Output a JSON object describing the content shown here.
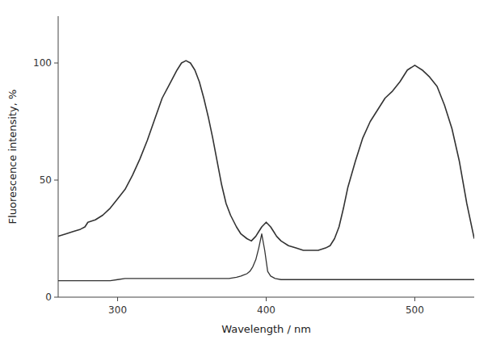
{
  "chart_data": {
    "type": "line",
    "title": "",
    "xlabel": "Wavelength / nm",
    "ylabel": "Fluorescence intensity, %",
    "xlim": [
      260,
      540
    ],
    "ylim": [
      0,
      120
    ],
    "xticks": [
      300,
      400,
      500
    ],
    "yticks": [
      0,
      50,
      100
    ],
    "grid": false,
    "series": [
      {
        "color": "#333333",
        "x": [
          260,
          265,
          270,
          275,
          278,
          280,
          285,
          290,
          295,
          300,
          305,
          310,
          315,
          320,
          325,
          330,
          335,
          340,
          343,
          346,
          349,
          352,
          355,
          358,
          361,
          364,
          367,
          370,
          373,
          376,
          380,
          383,
          387,
          390,
          393,
          395,
          397,
          400,
          403,
          405,
          407,
          410,
          415,
          420,
          425,
          430,
          435,
          440,
          443,
          446,
          449,
          452,
          455,
          460,
          465,
          470,
          475,
          480,
          485,
          490,
          495,
          500,
          505,
          510,
          515,
          520,
          525,
          530,
          535,
          540
        ],
        "values": [
          26,
          27,
          28,
          29,
          30,
          32,
          33,
          35,
          38,
          42,
          46,
          52,
          59,
          67,
          76,
          85,
          91,
          97,
          100,
          101,
          100,
          97,
          92,
          85,
          77,
          68,
          58,
          48,
          40,
          35,
          30,
          27,
          25,
          24,
          26,
          28,
          30,
          32,
          30,
          28,
          26,
          24,
          22,
          21,
          20,
          20,
          20,
          21,
          22,
          25,
          30,
          38,
          47,
          58,
          68,
          75,
          80,
          85,
          88,
          92,
          97,
          99,
          97,
          94,
          90,
          82,
          72,
          58,
          40,
          25
        ]
      },
      {
        "color": "#333333",
        "x": [
          260,
          265,
          270,
          275,
          280,
          285,
          290,
          295,
          300,
          305,
          310,
          315,
          320,
          325,
          330,
          335,
          340,
          345,
          350,
          355,
          360,
          365,
          370,
          375,
          380,
          383,
          385,
          387,
          389,
          391,
          393,
          395,
          397,
          399,
          401,
          403,
          406,
          410,
          415,
          420,
          425,
          430,
          435,
          440,
          445,
          450,
          455,
          460,
          465,
          470,
          475,
          480,
          485,
          490,
          495,
          500,
          505,
          510,
          515,
          520,
          525,
          530,
          535,
          540
        ],
        "values": [
          7,
          7,
          7,
          7,
          7,
          7,
          7,
          7,
          7.5,
          8,
          8,
          8,
          8,
          8,
          8,
          8,
          8,
          8,
          8,
          8,
          8,
          8,
          8,
          8,
          8.5,
          9,
          9.5,
          10,
          11,
          13,
          16,
          21,
          27,
          20,
          11,
          9,
          8,
          7.5,
          7.5,
          7.5,
          7.5,
          7.5,
          7.5,
          7.5,
          7.5,
          7.5,
          7.5,
          7.5,
          7.5,
          7.5,
          7.5,
          7.5,
          7.5,
          7.5,
          7.5,
          7.5,
          7.5,
          7.5,
          7.5,
          7.5,
          7.5,
          7.5,
          7.5,
          7.5
        ]
      }
    ]
  }
}
